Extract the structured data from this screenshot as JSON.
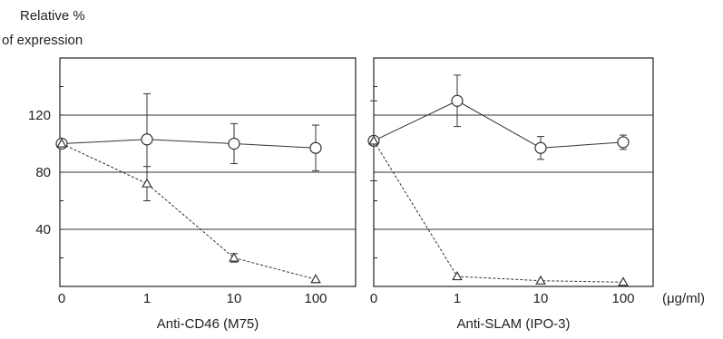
{
  "ylabel_line1": "Relative %",
  "ylabel_line2": "of expression",
  "unit_label": "(μg/ml)",
  "colors": {
    "axis": "#222222",
    "grid": "#333333",
    "series": "#333333",
    "background": "#ffffff"
  },
  "chart_data": [
    {
      "type": "line",
      "xscale": "log-like categorical",
      "categories": [
        "0",
        "1",
        "10",
        "100"
      ],
      "xlabel": "Anti-CD46 (M75)",
      "ylabel": "Relative % of expression",
      "yticks": [
        "40",
        "80",
        "120"
      ],
      "ylim": [
        0,
        160
      ],
      "grid": "horizontal at 40, 80, 120",
      "series": [
        {
          "marker": "circle",
          "values": [
            100,
            103,
            100,
            97
          ],
          "errors": [
            null,
            32,
            14,
            16
          ]
        },
        {
          "marker": "triangle",
          "values": [
            100,
            72,
            20,
            5
          ],
          "errors": [
            null,
            12,
            3,
            0
          ]
        }
      ]
    },
    {
      "type": "line",
      "xscale": "log-like categorical",
      "categories": [
        "0",
        "1",
        "10",
        "100"
      ],
      "xlabel": "Anti-SLAM (IPO-3)",
      "ylim": [
        0,
        160
      ],
      "grid": "horizontal at 40, 80, 120",
      "series": [
        {
          "marker": "circle",
          "values": [
            102,
            130,
            97,
            101
          ],
          "errors": [
            null,
            18,
            8,
            5
          ]
        },
        {
          "marker": "triangle",
          "values": [
            102,
            7,
            4,
            3
          ],
          "errors": [
            28,
            0,
            0,
            0
          ]
        }
      ]
    }
  ]
}
